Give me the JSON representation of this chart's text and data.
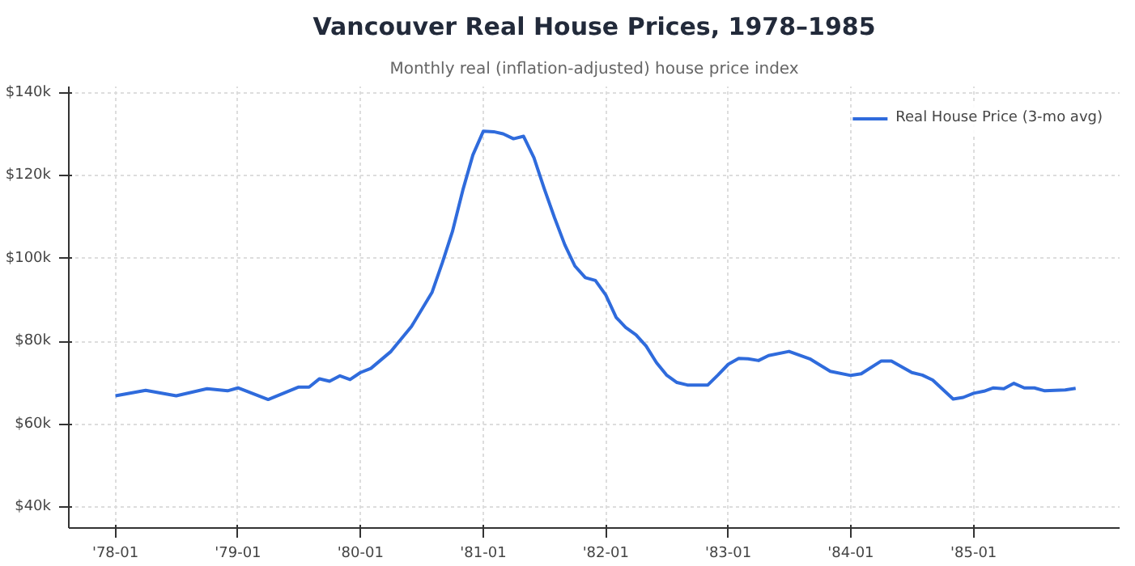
{
  "chart_data": {
    "type": "line",
    "title": "Vancouver Real House Prices, 1978–1985",
    "subtitle": "Monthly real (inflation-adjusted) house price index",
    "x": [
      "1978-01",
      "1978-04",
      "1978-07",
      "1978-10",
      "1978-12",
      "1979-01",
      "1979-04",
      "1979-07",
      "1979-08",
      "1979-09",
      "1979-10",
      "1979-11",
      "1979-12",
      "1980-01",
      "1980-02",
      "1980-04",
      "1980-06",
      "1980-08",
      "1980-09",
      "1980-10",
      "1980-11",
      "1980-12",
      "1981-01",
      "1981-02",
      "1981-03",
      "1981-04",
      "1981-05",
      "1981-06",
      "1981-07",
      "1981-08",
      "1981-09",
      "1981-10",
      "1981-11",
      "1981-12",
      "1982-01",
      "1982-02",
      "1982-03",
      "1982-04",
      "1982-05",
      "1982-06",
      "1982-07",
      "1982-08",
      "1982-09",
      "1982-11",
      "1982-12",
      "1983-01",
      "1983-02",
      "1983-03",
      "1983-04",
      "1983-05",
      "1983-07",
      "1983-09",
      "1983-11",
      "1984-01",
      "1984-02",
      "1984-04",
      "1984-05",
      "1984-07",
      "1984-08",
      "1984-09",
      "1984-11",
      "1984-12",
      "1985-01",
      "1985-02",
      "1985-03",
      "1985-04",
      "1985-05",
      "1985-06",
      "1985-07",
      "1985-08",
      "1985-10",
      "1985-11"
    ],
    "series": [
      {
        "name": "Real House Price (3-mo avg)",
        "color": "#2f6bdc",
        "values": [
          66900,
          68200,
          66900,
          68600,
          68100,
          68800,
          66000,
          69000,
          69000,
          71000,
          70400,
          71700,
          70800,
          72500,
          73500,
          77600,
          83600,
          91800,
          99000,
          106500,
          116500,
          125000,
          130700,
          130600,
          130100,
          128900,
          129500,
          124300,
          117000,
          109900,
          103300,
          98200,
          95400,
          94700,
          91200,
          85800,
          83400,
          81600,
          78900,
          74900,
          71900,
          70100,
          69500,
          69500,
          71900,
          74500,
          75900,
          75800,
          75400,
          76600,
          77600,
          75800,
          72800,
          71800,
          72200,
          75300,
          75300,
          72500,
          71900,
          70700,
          66100,
          66500,
          67500,
          68000,
          68800,
          68600,
          69900,
          68800,
          68800,
          68100,
          68300,
          68700
        ]
      }
    ],
    "xlim": [
      "1977-08-15",
      "1986-03-12"
    ],
    "xticks": [
      {
        "value": "1978-01",
        "label": "'78-01"
      },
      {
        "value": "1979-01",
        "label": "'79-01"
      },
      {
        "value": "1980-01",
        "label": "'80-01"
      },
      {
        "value": "1981-01",
        "label": "'81-01"
      },
      {
        "value": "1982-01",
        "label": "'82-01"
      },
      {
        "value": "1983-01",
        "label": "'83-01"
      },
      {
        "value": "1984-01",
        "label": "'84-01"
      },
      {
        "value": "1985-01",
        "label": "'85-01"
      }
    ],
    "ylim": [
      35000,
      141500
    ],
    "yticks": [
      {
        "value": 40000,
        "label": "$40k"
      },
      {
        "value": 60000,
        "label": "$60k"
      },
      {
        "value": 80000,
        "label": "$80k"
      },
      {
        "value": 100000,
        "label": "$100k"
      },
      {
        "value": 120000,
        "label": "$120k"
      },
      {
        "value": 140000,
        "label": "$140k"
      }
    ],
    "grid": true,
    "legend": "top right",
    "marker": "none",
    "line_style": "solid"
  }
}
